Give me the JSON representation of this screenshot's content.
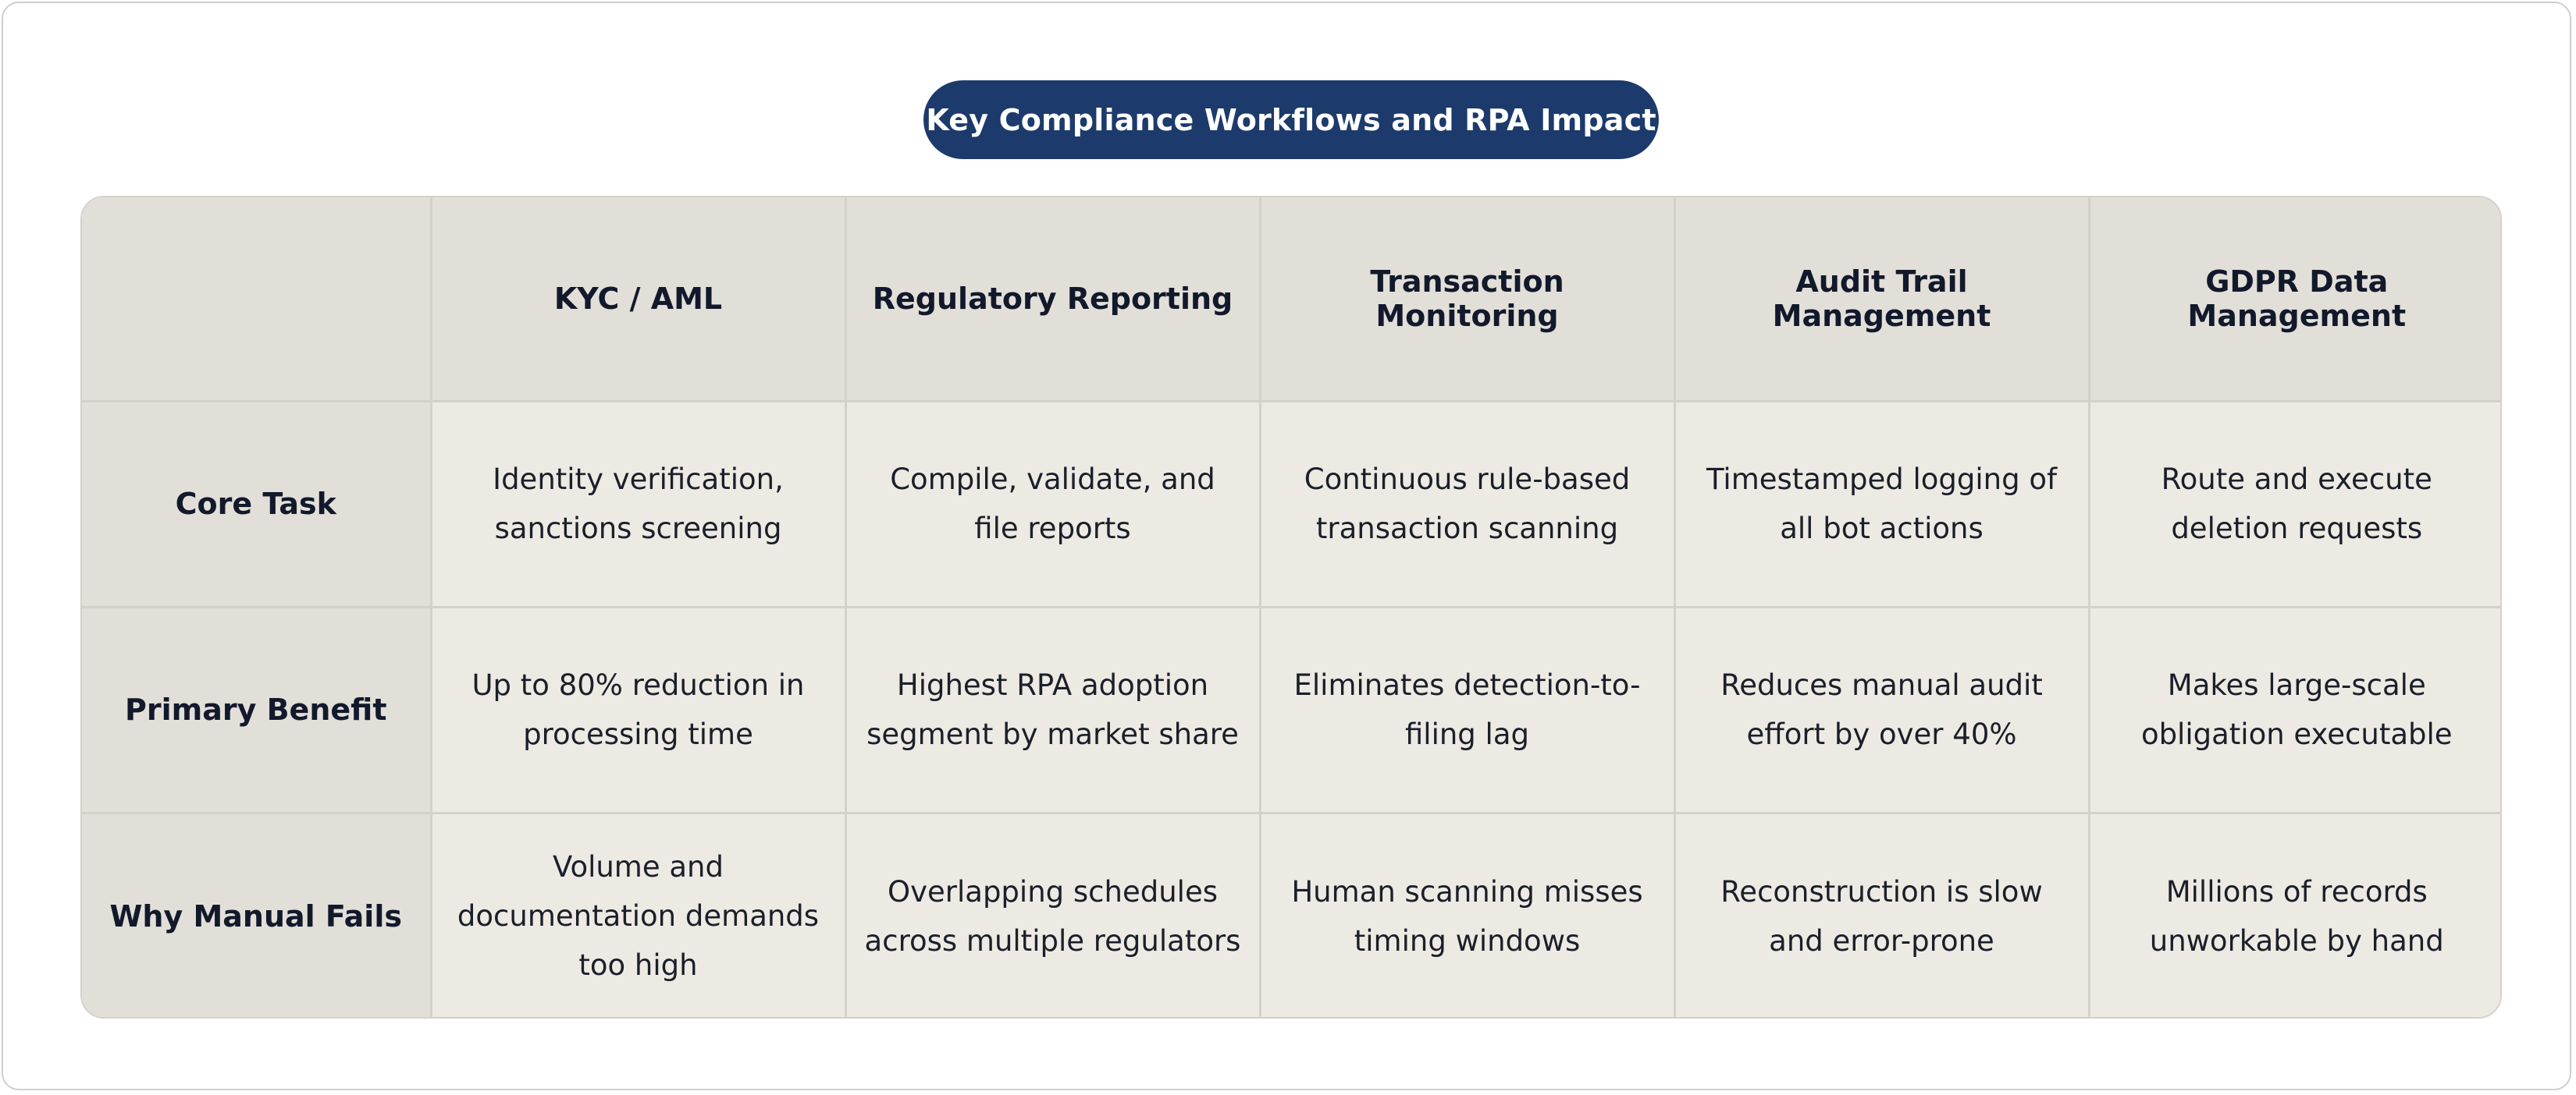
{
  "title": "Key Compliance Workflows and RPA Impact",
  "columns": [
    "KYC / AML",
    "Regulatory Reporting",
    "Transaction Monitoring",
    "Audit Trail Management",
    "GDPR Data Management"
  ],
  "rows": [
    {
      "label": "Core Task",
      "cells": [
        "Identity verification, sanctions screening",
        "Compile, validate, and file reports",
        "Continuous rule-based transaction scanning",
        "Timestamped logging of all bot actions",
        "Route and execute deletion requests"
      ]
    },
    {
      "label": "Primary Benefit",
      "cells": [
        "Up to 80% reduction in processing time",
        "Highest RPA adoption segment by market share",
        "Eliminates detection-to-filing lag",
        "Reduces manual audit effort by over 40%",
        "Makes large-scale obligation executable"
      ]
    },
    {
      "label": "Why Manual Fails",
      "cells": [
        "Volume and documentation demands too high",
        "Overlapping schedules across multiple regulators",
        "Human scanning misses timing windows",
        "Reconstruction is slow and error-prone",
        "Millions of records unworkable by hand"
      ]
    }
  ],
  "colors": {
    "title_background": "#1c3a6b",
    "header_background": "#e2dfd9",
    "cell_background": "#edeae3",
    "border": "#d4d1c9"
  }
}
